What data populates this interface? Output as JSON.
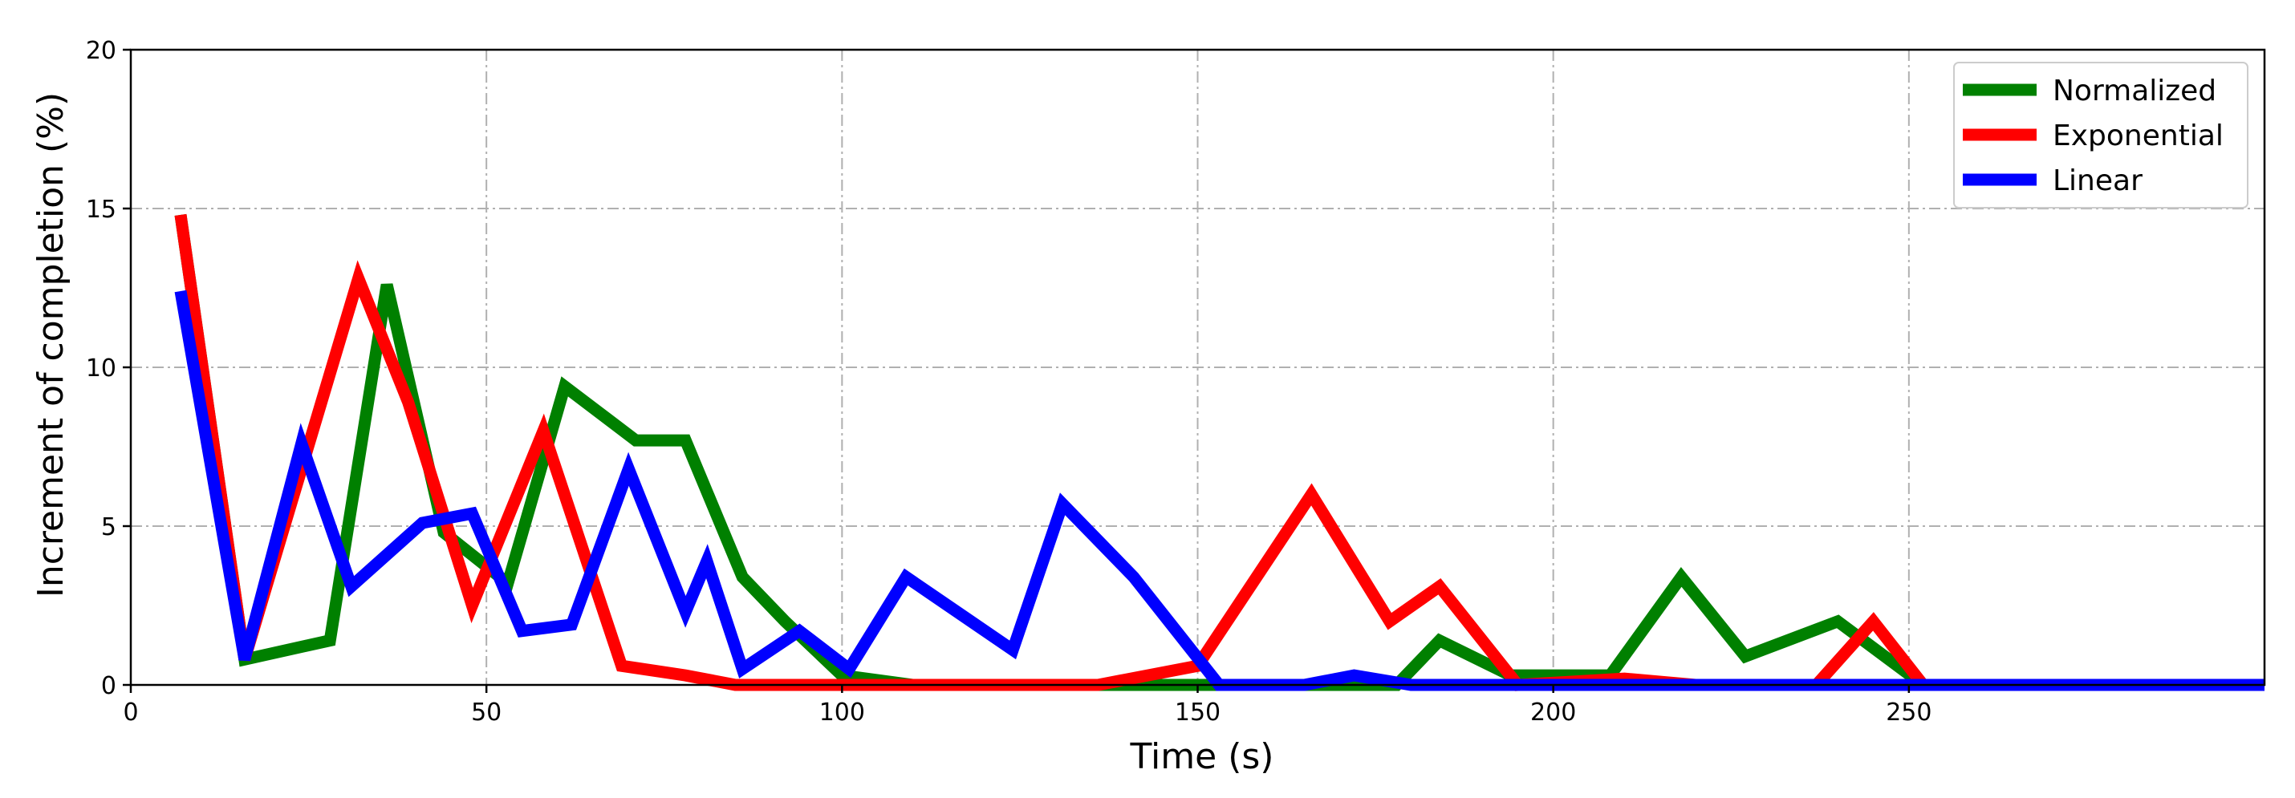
{
  "chart_data": {
    "type": "line",
    "title": "",
    "xlabel": "Time (s)",
    "ylabel": "Increment of completion (%)",
    "xlim": [
      0,
      300
    ],
    "ylim": [
      0,
      20
    ],
    "xticks": [
      0,
      50,
      100,
      150,
      200,
      250
    ],
    "xtick_labels": [
      "0",
      "50",
      "100",
      "150",
      "200",
      "250"
    ],
    "yticks": [
      0,
      5,
      10,
      15,
      20
    ],
    "ytick_labels": [
      "0",
      "5",
      "10",
      "15",
      "20"
    ],
    "grid": true,
    "legend_position": "top-right",
    "series": [
      {
        "name": "Normalized",
        "color": "#008000",
        "x": [
          7,
          16,
          28,
          36,
          44,
          53,
          61,
          71,
          78,
          86,
          92,
          100,
          110,
          120,
          130,
          140,
          150,
          160,
          172,
          178,
          184,
          194,
          208,
          218,
          227,
          240,
          252,
          262,
          300
        ],
        "y": [
          14.8,
          0.8,
          1.4,
          12.6,
          4.8,
          3.2,
          9.4,
          7.7,
          7.7,
          3.4,
          2.0,
          0.3,
          0.0,
          0.0,
          0.0,
          0.0,
          0.0,
          0.0,
          0.0,
          0.0,
          1.4,
          0.3,
          0.3,
          3.4,
          0.9,
          2.0,
          0.0,
          0.0,
          0.0
        ]
      },
      {
        "name": "Exponential",
        "color": "#ff0000",
        "x": [
          7,
          16,
          32,
          39,
          48,
          58,
          69,
          78,
          85,
          95,
          110,
          130,
          136,
          150,
          166,
          177,
          184,
          195,
          210,
          220,
          237,
          245,
          252,
          300
        ],
        "y": [
          14.8,
          0.8,
          12.8,
          8.9,
          2.5,
          8.0,
          0.6,
          0.3,
          0.0,
          0.0,
          0.0,
          0.0,
          0.0,
          0.6,
          6.0,
          2.0,
          3.1,
          0.0,
          0.2,
          0.0,
          0.0,
          2.0,
          0.0,
          0.0
        ]
      },
      {
        "name": "Linear",
        "color": "#0000ff",
        "x": [
          7,
          16,
          24,
          31,
          41,
          48,
          55,
          62,
          70,
          78,
          81,
          86,
          94,
          101,
          109,
          124,
          131,
          141,
          153,
          165,
          172,
          180,
          195,
          210,
          250,
          300
        ],
        "y": [
          12.4,
          0.8,
          7.6,
          3.1,
          5.1,
          5.4,
          1.7,
          1.9,
          6.8,
          2.3,
          3.9,
          0.5,
          1.7,
          0.5,
          3.4,
          1.1,
          5.7,
          3.4,
          0.0,
          0.0,
          0.3,
          0.0,
          0.0,
          0.0,
          0.0,
          0.0
        ]
      }
    ]
  }
}
